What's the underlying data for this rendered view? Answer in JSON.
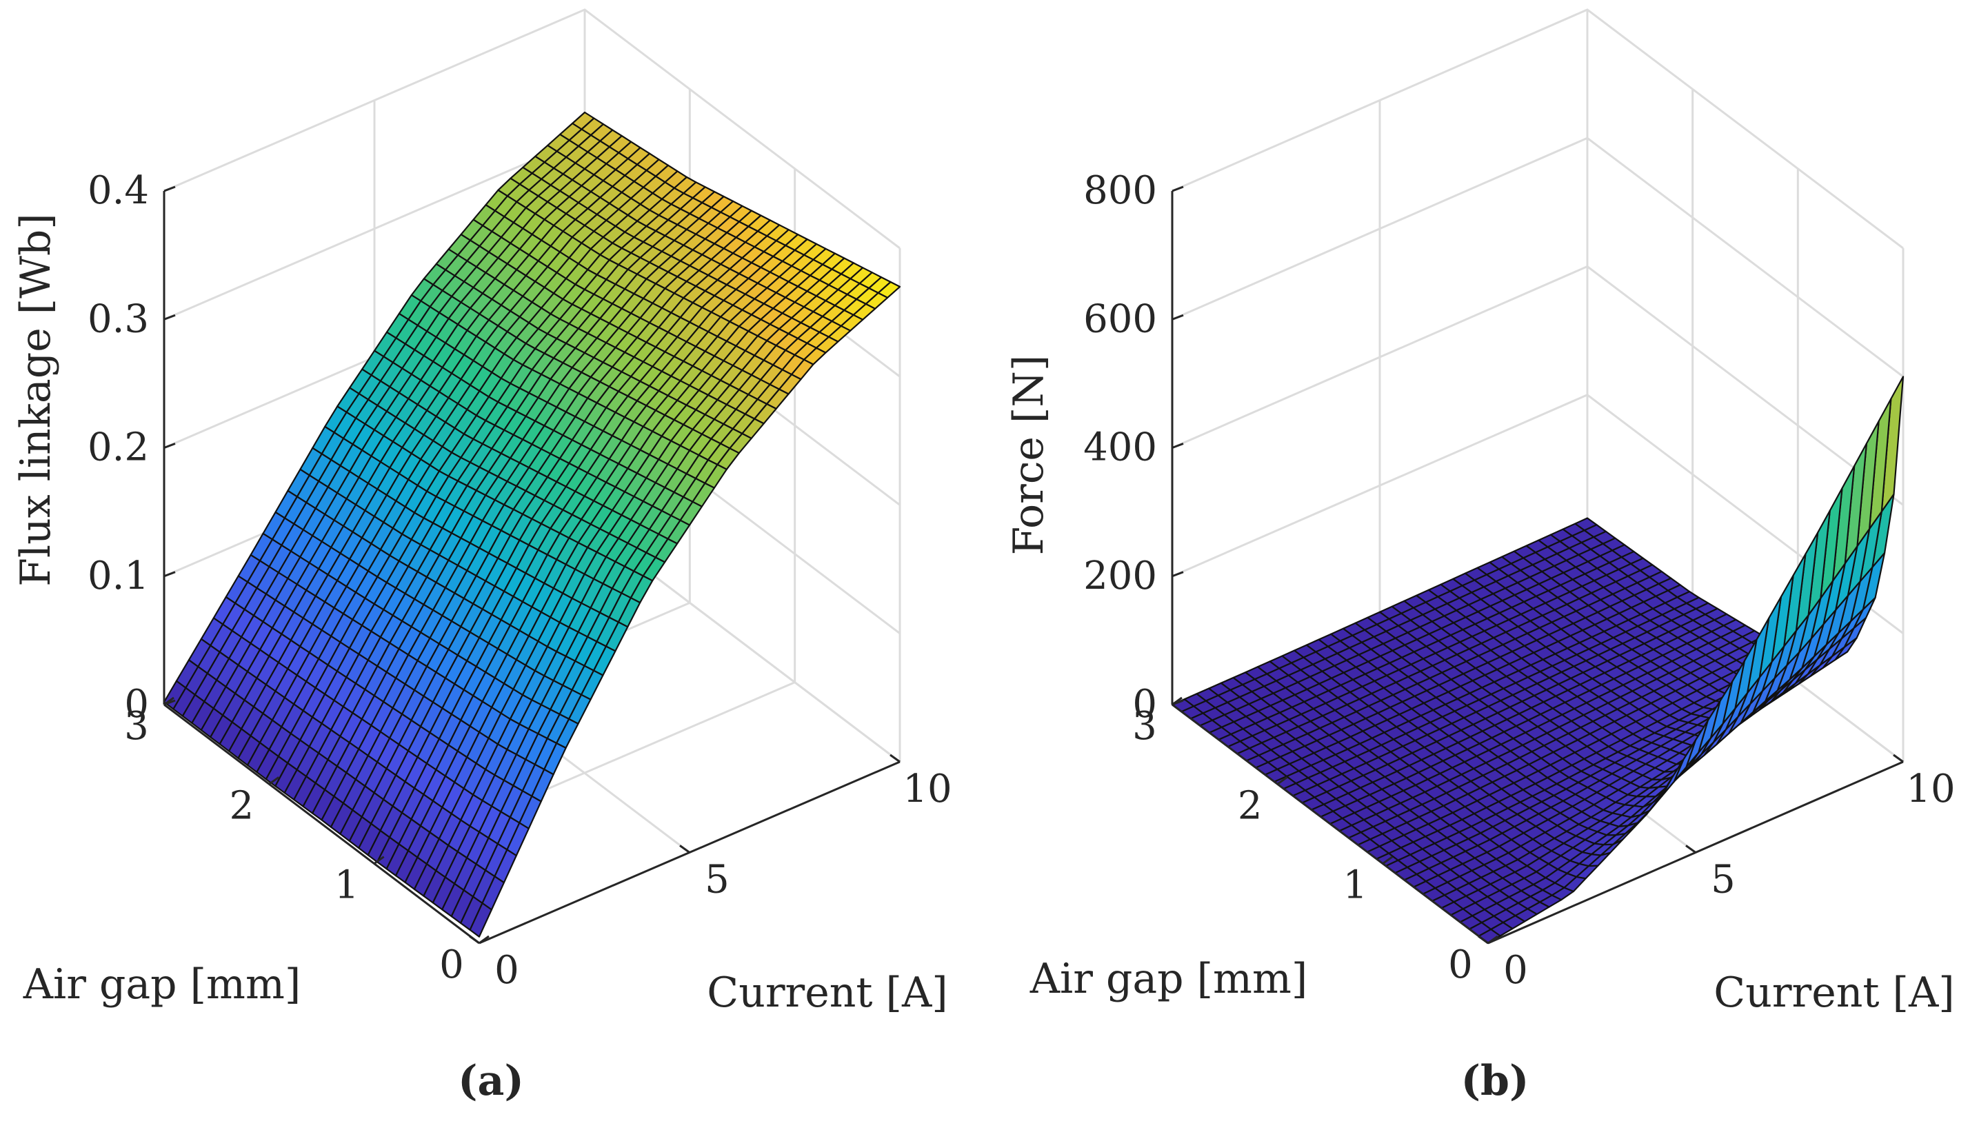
{
  "chart_data": [
    {
      "type": "surface",
      "panel_label": "(a)",
      "xlabel": "Air gap [mm]",
      "ylabel": "Current [A]",
      "zlabel": "Flux linkage [Wb]",
      "xlim": [
        0,
        3
      ],
      "ylim": [
        0,
        10
      ],
      "zlim": [
        0,
        0.4
      ],
      "xticks": [
        "0",
        "1",
        "2",
        "3"
      ],
      "yticks": [
        "0",
        "5",
        "10"
      ],
      "zticks": [
        "0",
        "0.1",
        "0.2",
        "0.3",
        "0.4"
      ],
      "grid": true,
      "colormap": "parula",
      "surface_samples": {
        "note": "Flux linkage z(gap, current): small at low current, rising and saturating toward ~0.37 Wb at 10 A; weak dependence on gap",
        "gap_mm": [
          0,
          0.5,
          1,
          1.5,
          2,
          2.5,
          3
        ],
        "current_A": [
          0,
          2,
          4,
          6,
          8,
          10
        ],
        "z": [
          [
            0.005,
            0.12,
            0.22,
            0.29,
            0.34,
            0.37
          ],
          [
            0.004,
            0.11,
            0.21,
            0.28,
            0.33,
            0.36
          ],
          [
            0.003,
            0.105,
            0.2,
            0.27,
            0.32,
            0.35
          ],
          [
            0.003,
            0.1,
            0.19,
            0.26,
            0.31,
            0.34
          ],
          [
            0.002,
            0.095,
            0.18,
            0.25,
            0.3,
            0.33
          ],
          [
            0.002,
            0.09,
            0.175,
            0.245,
            0.295,
            0.325
          ],
          [
            0.002,
            0.085,
            0.17,
            0.24,
            0.29,
            0.32
          ]
        ]
      }
    },
    {
      "type": "surface",
      "panel_label": "(b)",
      "xlabel": "Air gap [mm]",
      "ylabel": "Current [A]",
      "zlabel": "Force [N]",
      "xlim": [
        0,
        3
      ],
      "ylim": [
        0,
        10
      ],
      "zlim": [
        0,
        800
      ],
      "xticks": [
        "0",
        "1",
        "2",
        "3"
      ],
      "yticks": [
        "0",
        "5",
        "10"
      ],
      "zticks": [
        "0",
        "200",
        "400",
        "600",
        "800"
      ],
      "grid": true,
      "colormap": "parula",
      "surface_samples": {
        "note": "Force z(gap, current): near zero for most of the domain, rising sharply as gap approaches 0 at high current, peak ~600 N at gap 0, current 10 A",
        "gap_mm": [
          0,
          0.1,
          0.25,
          0.5,
          1,
          2,
          3
        ],
        "current_A": [
          0,
          2,
          4,
          6,
          8,
          10
        ],
        "z": [
          [
            0,
            20,
            100,
            250,
            420,
            600
          ],
          [
            0,
            15,
            70,
            160,
            260,
            380
          ],
          [
            0,
            10,
            45,
            100,
            160,
            230
          ],
          [
            0,
            6,
            25,
            50,
            80,
            110
          ],
          [
            0,
            3,
            10,
            20,
            30,
            40
          ],
          [
            0,
            1,
            4,
            7,
            10,
            14
          ],
          [
            0,
            0.5,
            2,
            4,
            6,
            8
          ]
        ]
      }
    }
  ]
}
